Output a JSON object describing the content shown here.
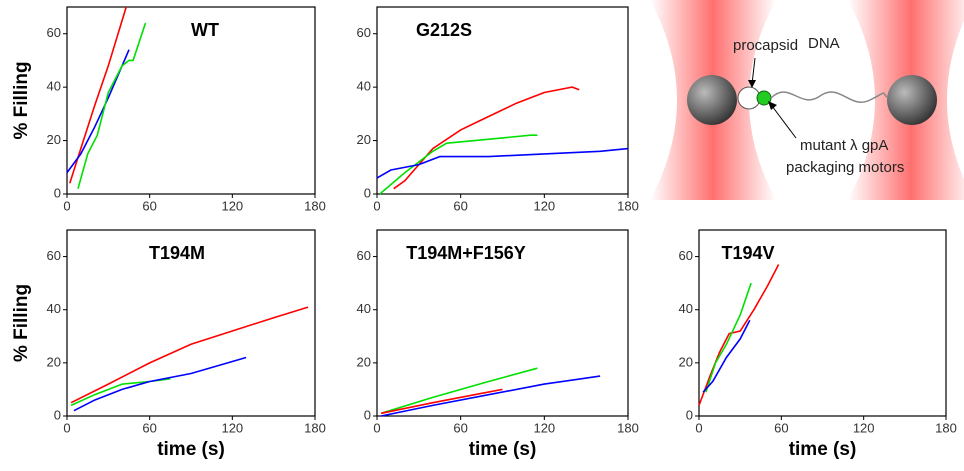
{
  "chart_data": [
    {
      "type": "line",
      "title": "WT",
      "ylabel": "% Filling",
      "xlim": [
        0,
        180
      ],
      "ylim": [
        0,
        70
      ],
      "xticks": [
        0,
        60,
        120,
        180
      ],
      "yticks": [
        0,
        20,
        40,
        60
      ],
      "series": [
        {
          "color": "#ff0000",
          "x": [
            2,
            10,
            20,
            30,
            43
          ],
          "values": [
            4,
            17,
            33,
            48,
            70
          ]
        },
        {
          "color": "#0000ff",
          "x": [
            0,
            10,
            20,
            30,
            40,
            45
          ],
          "values": [
            8,
            15,
            25,
            36,
            48,
            54
          ]
        },
        {
          "color": "#00e000",
          "x": [
            8,
            15,
            22,
            30,
            40,
            45,
            48,
            57
          ],
          "values": [
            2,
            15,
            22,
            38,
            48,
            50,
            50,
            64
          ]
        }
      ]
    },
    {
      "type": "line",
      "title": "G212S",
      "xlim": [
        0,
        180
      ],
      "ylim": [
        0,
        70
      ],
      "xticks": [
        0,
        60,
        120,
        180
      ],
      "yticks": [
        0,
        20,
        40,
        60
      ],
      "series": [
        {
          "color": "#ff0000",
          "x": [
            12,
            20,
            40,
            60,
            80,
            100,
            120,
            140,
            145
          ],
          "values": [
            2,
            5,
            17,
            24,
            29,
            34,
            38,
            40,
            39
          ]
        },
        {
          "color": "#00e000",
          "x": [
            2,
            20,
            40,
            50,
            70,
            90,
            110,
            115
          ],
          "values": [
            0,
            8,
            16,
            19,
            20,
            21,
            22,
            22
          ]
        },
        {
          "color": "#0000ff",
          "x": [
            0,
            10,
            30,
            45,
            80,
            120,
            160,
            180
          ],
          "values": [
            6,
            9,
            11,
            14,
            14,
            15,
            16,
            17
          ]
        }
      ]
    },
    {
      "type": "line",
      "title": "T194M",
      "ylabel": "% Filling",
      "xlabel": "time (s)",
      "xlim": [
        0,
        180
      ],
      "ylim": [
        0,
        70
      ],
      "xticks": [
        0,
        60,
        120,
        180
      ],
      "yticks": [
        0,
        20,
        40,
        60
      ],
      "series": [
        {
          "color": "#ff0000",
          "x": [
            3,
            30,
            60,
            90,
            120,
            150,
            175
          ],
          "values": [
            5,
            12,
            20,
            27,
            32,
            37,
            41
          ]
        },
        {
          "color": "#00e000",
          "x": [
            3,
            20,
            40,
            60,
            75
          ],
          "values": [
            4,
            8,
            12,
            13,
            14
          ]
        },
        {
          "color": "#0000ff",
          "x": [
            5,
            20,
            40,
            60,
            90,
            110,
            130
          ],
          "values": [
            2,
            6,
            10,
            13,
            16,
            19,
            22
          ]
        }
      ]
    },
    {
      "type": "line",
      "title": "T194M+F156Y",
      "xlabel": "time (s)",
      "xlim": [
        0,
        180
      ],
      "ylim": [
        0,
        70
      ],
      "xticks": [
        0,
        60,
        120,
        180
      ],
      "yticks": [
        0,
        20,
        40,
        60
      ],
      "series": [
        {
          "color": "#00e000",
          "x": [
            3,
            40,
            80,
            115
          ],
          "values": [
            1,
            7,
            13,
            18
          ]
        },
        {
          "color": "#ff0000",
          "x": [
            3,
            40,
            70,
            90
          ],
          "values": [
            1,
            5,
            8,
            10
          ]
        },
        {
          "color": "#0000ff",
          "x": [
            3,
            40,
            80,
            120,
            160
          ],
          "values": [
            0,
            4,
            8,
            12,
            15
          ]
        }
      ]
    },
    {
      "type": "line",
      "title": "T194V",
      "xlabel": "time (s)",
      "xlim": [
        0,
        180
      ],
      "ylim": [
        0,
        70
      ],
      "xticks": [
        0,
        60,
        120,
        180
      ],
      "yticks": [
        0,
        20,
        40,
        60
      ],
      "series": [
        {
          "color": "#ff0000",
          "x": [
            0,
            8,
            15,
            22,
            30,
            40,
            50,
            58
          ],
          "values": [
            4,
            15,
            24,
            31,
            32,
            40,
            49,
            57
          ]
        },
        {
          "color": "#00e000",
          "x": [
            5,
            12,
            20,
            30,
            38
          ],
          "values": [
            9,
            20,
            27,
            38,
            50
          ]
        },
        {
          "color": "#0000ff",
          "x": [
            3,
            10,
            20,
            30,
            37
          ],
          "values": [
            9,
            13,
            22,
            29,
            36
          ]
        }
      ]
    }
  ],
  "diagram": {
    "labels": [
      "procapsid",
      "DNA",
      "mutant λ gpA",
      "packaging motors"
    ]
  }
}
